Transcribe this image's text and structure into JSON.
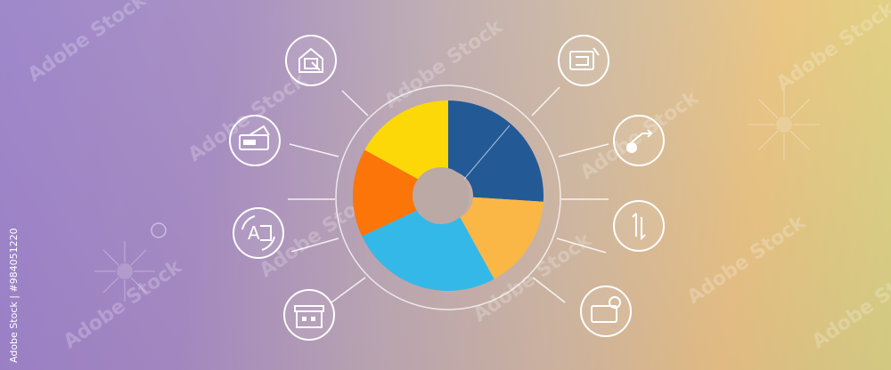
{
  "diagram": {
    "type": "donut-infographic",
    "slices": [
      {
        "color": "#235a96",
        "share": 0.26
      },
      {
        "color": "#fbb745",
        "share": 0.16
      },
      {
        "color": "#34b8e8",
        "share": 0.26
      },
      {
        "color": "#fb7508",
        "share": 0.15
      },
      {
        "color": "#fcd809",
        "share": 0.17
      }
    ],
    "icons_left": [
      "house-presentation-icon",
      "ticket-card-icon",
      "translate-a-icon",
      "storefront-icon"
    ],
    "icons_right": [
      "monitor-frame-icon",
      "chart-pen-icon",
      "exchange-arrows-icon",
      "folder-gear-icon"
    ],
    "icon_color": "#ffffff"
  },
  "watermark": {
    "credit": "Adobe Stock | #984051220",
    "pattern_text": "Adobe Stock"
  }
}
